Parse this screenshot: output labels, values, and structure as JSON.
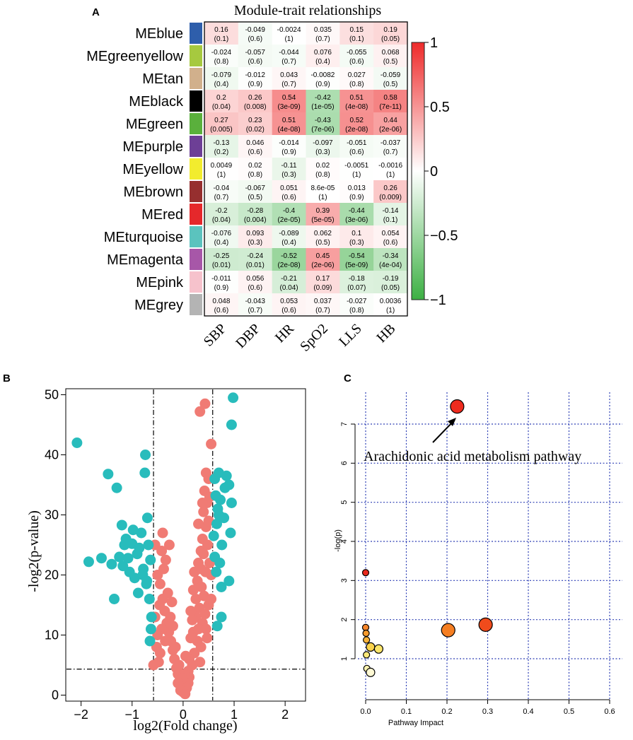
{
  "panels": {
    "a": "A",
    "b": "B",
    "c": "C"
  },
  "chart_data": [
    {
      "type": "heatmap",
      "title": "Module-trait relationships",
      "rows": [
        "MEblue",
        "MEgreenyellow",
        "MEtan",
        "MEblack",
        "MEgreen",
        "MEpurple",
        "MEyellow",
        "MEbrown",
        "MEred",
        "MEturquoise",
        "MEmagenta",
        "MEpink",
        "MEgrey"
      ],
      "row_colors": [
        "#2e5eab",
        "#a6c93f",
        "#d1b08c",
        "#000000",
        "#5ab03c",
        "#6d3f96",
        "#f2ec2e",
        "#962f2f",
        "#e5282b",
        "#5bc3be",
        "#a757a8",
        "#f6c2cc",
        "#b4b4b4"
      ],
      "columns": [
        "SBP",
        "DBP",
        "HR",
        "SpO2",
        "LLS",
        "HB"
      ],
      "values": [
        [
          0.16,
          -0.049,
          -0.0024,
          0.035,
          0.15,
          0.19
        ],
        [
          -0.024,
          -0.057,
          -0.044,
          0.076,
          -0.055,
          0.068
        ],
        [
          -0.079,
          -0.012,
          0.043,
          -0.0082,
          0.027,
          -0.059
        ],
        [
          0.2,
          0.26,
          0.54,
          -0.42,
          0.51,
          0.58
        ],
        [
          0.27,
          0.23,
          0.51,
          -0.43,
          0.52,
          0.44
        ],
        [
          -0.13,
          0.046,
          -0.014,
          -0.097,
          -0.051,
          -0.037
        ],
        [
          0.0049,
          0.02,
          -0.11,
          0.02,
          -0.0051,
          -0.0016
        ],
        [
          -0.04,
          -0.067,
          0.051,
          8.6e-05,
          0.013,
          0.26
        ],
        [
          -0.2,
          -0.28,
          -0.4,
          0.39,
          -0.44,
          -0.14
        ],
        [
          -0.076,
          0.093,
          -0.089,
          0.062,
          0.1,
          0.054
        ],
        [
          -0.25,
          -0.24,
          -0.52,
          0.45,
          -0.54,
          -0.34
        ],
        [
          -0.011,
          0.056,
          -0.21,
          0.17,
          -0.18,
          -0.19
        ],
        [
          0.048,
          -0.043,
          0.053,
          0.037,
          -0.027,
          0.0036
        ]
      ],
      "value_labels": [
        [
          "0.16",
          "-0.049",
          "-0.0024",
          "0.035",
          "0.15",
          "0.19"
        ],
        [
          "-0.024",
          "-0.057",
          "-0.044",
          "0.076",
          "-0.055",
          "0.068"
        ],
        [
          "-0.079",
          "-0.012",
          "0.043",
          "-0.0082",
          "0.027",
          "-0.059"
        ],
        [
          "0.2",
          "0.26",
          "0.54",
          "-0.42",
          "0.51",
          "0.58"
        ],
        [
          "0.27",
          "0.23",
          "0.51",
          "-0.43",
          "0.52",
          "0.44"
        ],
        [
          "-0.13",
          "0.046",
          "-0.014",
          "-0.097",
          "-0.051",
          "-0.037"
        ],
        [
          "0.0049",
          "0.02",
          "-0.11",
          "0.02",
          "-0.0051",
          "-0.0016"
        ],
        [
          "-0.04",
          "-0.067",
          "0.051",
          "8.6e-05",
          "0.013",
          "0.26"
        ],
        [
          "-0.2",
          "-0.28",
          "-0.4",
          "0.39",
          "-0.44",
          "-0.14"
        ],
        [
          "-0.076",
          "0.093",
          "-0.089",
          "0.062",
          "0.1",
          "0.054"
        ],
        [
          "-0.25",
          "-0.24",
          "-0.52",
          "0.45",
          "-0.54",
          "-0.34"
        ],
        [
          "-0.011",
          "0.056",
          "-0.21",
          "0.17",
          "-0.18",
          "-0.19"
        ],
        [
          "0.048",
          "-0.043",
          "0.053",
          "0.037",
          "-0.027",
          "0.0036"
        ]
      ],
      "p_labels": [
        [
          "(0.1)",
          "(0.6)",
          "(1)",
          "(0.7)",
          "(0.1)",
          "(0.05)"
        ],
        [
          "(0.8)",
          "(0.6)",
          "(0.7)",
          "(0.4)",
          "(0.6)",
          "(0.5)"
        ],
        [
          "(0.4)",
          "(0.9)",
          "(0.7)",
          "(0.9)",
          "(0.8)",
          "(0.5)"
        ],
        [
          "(0.04)",
          "(0.008)",
          "(3e-09)",
          "(1e-05)",
          "(4e-08)",
          "(7e-11)"
        ],
        [
          "(0.005)",
          "(0.02)",
          "(4e-08)",
          "(7e-06)",
          "(2e-08)",
          "(2e-06)"
        ],
        [
          "(0.2)",
          "(0.6)",
          "(0.9)",
          "(0.3)",
          "(0.6)",
          "(0.7)"
        ],
        [
          "(1)",
          "(0.8)",
          "(0.3)",
          "(0.8)",
          "(1)",
          "(1)"
        ],
        [
          "(0.7)",
          "(0.5)",
          "(0.6)",
          "(1)",
          "(0.9)",
          "(0.009)"
        ],
        [
          "(0.04)",
          "(0.004)",
          "(2e-05)",
          "(5e-05)",
          "(3e-06)",
          "(0.1)"
        ],
        [
          "(0.4)",
          "(0.3)",
          "(0.4)",
          "(0.5)",
          "(0.3)",
          "(0.6)"
        ],
        [
          "(0.01)",
          "(0.01)",
          "(2e-08)",
          "(2e-06)",
          "(5e-09)",
          "(4e-04)"
        ],
        [
          "(0.9)",
          "(0.6)",
          "(0.04)",
          "(0.09)",
          "(0.07)",
          "(0.05)"
        ],
        [
          "(0.6)",
          "(0.7)",
          "(0.6)",
          "(0.7)",
          "(0.8)",
          "(1)"
        ]
      ],
      "scale": {
        "min": -1,
        "max": 1,
        "low_color": "#3cb043",
        "mid_color": "#ffffff",
        "high_color": "#ee2a2a"
      },
      "colorbar_ticks": [
        1,
        0.5,
        0,
        -0.5,
        -1
      ],
      "colorbar_tick_labels": [
        "1",
        "0.5",
        "0",
        "−0.5",
        "−1"
      ]
    },
    {
      "type": "scatter",
      "xlabel": "log2(Fold change)",
      "ylabel": "-log2(p-value)",
      "xlim": [
        -2.3,
        2.4
      ],
      "ylim": [
        -1,
        51
      ],
      "xticks": [
        -2,
        -1,
        0,
        1,
        2
      ],
      "yticks": [
        0,
        10,
        20,
        30,
        40,
        50
      ],
      "vlines": [
        -0.58,
        0.58
      ],
      "hline": 4.32,
      "series": [
        {
          "name": "significant",
          "color": "#28bcbc",
          "points": [
            [
              -2.08,
              42
            ],
            [
              -1.85,
              22.2
            ],
            [
              -1.6,
              22.8
            ],
            [
              -1.47,
              36.8
            ],
            [
              -1.35,
              16
            ],
            [
              -1.3,
              34.5
            ],
            [
              -1.2,
              28.3
            ],
            [
              -1.18,
              21.5
            ],
            [
              -1.12,
              26
            ],
            [
              -1.05,
              20.5
            ],
            [
              -1,
              25.2
            ],
            [
              -0.95,
              19.5
            ],
            [
              -0.9,
              23.5
            ],
            [
              -0.88,
              17
            ],
            [
              -0.82,
              27
            ],
            [
              -0.78,
              21
            ],
            [
              -0.75,
              37
            ],
            [
              -0.74,
              40
            ],
            [
              -0.72,
              18.5
            ],
            [
              -0.7,
              29.5
            ],
            [
              -0.68,
              25
            ],
            [
              -0.66,
              16
            ],
            [
              -0.64,
              22.5
            ],
            [
              -0.63,
              11
            ],
            [
              -0.62,
              13
            ],
            [
              -1.4,
              21.8
            ],
            [
              -1.25,
              23
            ],
            [
              -1.15,
              25
            ],
            [
              -0.98,
              27.5
            ],
            [
              -0.86,
              24.5
            ],
            [
              -0.79,
              20
            ],
            [
              -0.71,
              19
            ],
            [
              -0.65,
              9
            ],
            [
              -1.08,
              22.8
            ],
            [
              0.98,
              49.5
            ],
            [
              0.95,
              45
            ],
            [
              0.62,
              36
            ],
            [
              0.64,
              33.2
            ],
            [
              0.66,
              28.5
            ],
            [
              0.68,
              31
            ],
            [
              0.7,
              30
            ],
            [
              0.73,
              32.5
            ],
            [
              0.76,
              25
            ],
            [
              0.8,
              29.5
            ],
            [
              0.85,
              36.5
            ],
            [
              0.9,
              35
            ],
            [
              0.95,
              32
            ],
            [
              0.93,
              27
            ],
            [
              0.62,
              23
            ],
            [
              0.65,
              20.5
            ],
            [
              0.75,
              18
            ],
            [
              0.9,
              19
            ],
            [
              0.75,
              13
            ],
            [
              0.67,
              11.5
            ],
            [
              0.7,
              37
            ],
            [
              0.82,
              34.5
            ],
            [
              0.6,
              26.5
            ],
            [
              0.72,
              22
            ]
          ]
        },
        {
          "name": "not-significant",
          "color": "#f07b74",
          "points": [
            [
              0.33,
              47.2
            ],
            [
              0.43,
              48.5
            ],
            [
              0.55,
              41.8
            ],
            [
              0.5,
              36
            ],
            [
              0.47,
              32
            ],
            [
              0.42,
              34
            ],
            [
              0.4,
              30.5
            ],
            [
              0.45,
              28
            ],
            [
              0.38,
              26
            ],
            [
              0.35,
              24
            ],
            [
              0.48,
              25
            ],
            [
              0.52,
              22
            ],
            [
              0.44,
              20.5
            ],
            [
              0.3,
              22
            ],
            [
              0.28,
              19
            ],
            [
              0.36,
              18
            ],
            [
              0.41,
              16.5
            ],
            [
              0.5,
              15
            ],
            [
              0.32,
              14.5
            ],
            [
              0.25,
              13
            ],
            [
              0.38,
              12
            ],
            [
              0.45,
              11
            ],
            [
              0.2,
              10.5
            ],
            [
              0.28,
              9
            ],
            [
              0.35,
              8
            ],
            [
              0.15,
              9.5
            ],
            [
              0.22,
              7
            ],
            [
              0.12,
              6
            ],
            [
              0.18,
              5
            ],
            [
              0.1,
              4
            ],
            [
              0.08,
              3
            ],
            [
              0.05,
              2
            ],
            [
              0.02,
              1
            ],
            [
              0,
              0.5
            ],
            [
              -0.03,
              1.5
            ],
            [
              -0.06,
              2.5
            ],
            [
              -0.1,
              3.5
            ],
            [
              -0.13,
              4.5
            ],
            [
              -0.17,
              6
            ],
            [
              -0.2,
              7.5
            ],
            [
              -0.24,
              9
            ],
            [
              -0.28,
              10.5
            ],
            [
              -0.32,
              12
            ],
            [
              -0.36,
              14
            ],
            [
              -0.4,
              16
            ],
            [
              -0.45,
              18.5
            ],
            [
              -0.5,
              20
            ],
            [
              -0.55,
              13
            ],
            [
              -0.52,
              8
            ],
            [
              -0.48,
              5.5
            ],
            [
              -0.42,
              11
            ],
            [
              -0.38,
              21
            ],
            [
              -0.46,
              15
            ],
            [
              -0.3,
              17
            ],
            [
              -0.25,
              13
            ],
            [
              -0.35,
              9
            ],
            [
              -0.4,
              27
            ],
            [
              -0.27,
              25
            ],
            [
              -0.2,
              11.5
            ],
            [
              -0.15,
              8
            ],
            [
              -0.08,
              5
            ],
            [
              0.05,
              6.5
            ],
            [
              0.12,
              3
            ],
            [
              0.1,
              2
            ],
            [
              0.25,
              16
            ],
            [
              0.3,
              11
            ],
            [
              0.15,
              14
            ],
            [
              0.2,
              17.5
            ],
            [
              0.4,
              23.5
            ],
            [
              0.5,
              29
            ],
            [
              0.43,
              13.5
            ],
            [
              0.47,
              9.5
            ],
            [
              0.55,
              16
            ],
            [
              0.55,
              20
            ],
            [
              0.33,
              5.5
            ],
            [
              -0.55,
              25
            ],
            [
              -0.5,
              10
            ],
            [
              -0.45,
              7
            ],
            [
              -0.58,
              5
            ],
            [
              0.02,
              3.5
            ],
            [
              -0.02,
              2.8
            ],
            [
              0.07,
              1.2
            ],
            [
              -0.05,
              0.8
            ],
            [
              0.04,
              0.2
            ],
            [
              -0.1,
              2
            ],
            [
              0.22,
              20.5
            ],
            [
              0.35,
              21
            ],
            [
              0.38,
              32
            ],
            [
              0.45,
              37
            ],
            [
              0.52,
              33
            ],
            [
              -0.34,
              22.5
            ],
            [
              -0.42,
              24
            ],
            [
              -0.22,
              15.5
            ],
            [
              0.18,
              12.5
            ],
            [
              0.3,
              28.5
            ]
          ]
        }
      ]
    },
    {
      "type": "scatter",
      "xlabel": "Pathway Impact",
      "ylabel": "-log(p)",
      "xlim": [
        -0.02,
        0.62
      ],
      "ylim": [
        0.55,
        7.65
      ],
      "xticks": [
        0.0,
        0.1,
        0.2,
        0.3,
        0.4,
        0.5,
        0.6
      ],
      "xtick_labels": [
        "0.0",
        "0.1",
        "0.2",
        "0.3",
        "0.4",
        "0.5",
        "0.6"
      ],
      "yticks": [
        1,
        2,
        3,
        4,
        5,
        6,
        7
      ],
      "points": [
        {
          "x": 0.225,
          "y": 7.45,
          "size": "large",
          "color": "#ee2b1e"
        },
        {
          "x": 0.295,
          "y": 1.87,
          "size": "large",
          "color": "#f04b1c"
        },
        {
          "x": 0.203,
          "y": 1.73,
          "size": "large",
          "color": "#f57e22"
        },
        {
          "x": 0.0,
          "y": 3.2,
          "size": "small",
          "color": "#e8281c"
        },
        {
          "x": 0.0,
          "y": 1.8,
          "size": "small",
          "color": "#f5852a"
        },
        {
          "x": 0.001,
          "y": 1.65,
          "size": "small",
          "color": "#f59a2d"
        },
        {
          "x": 0.002,
          "y": 1.48,
          "size": "small",
          "color": "#f7b23a"
        },
        {
          "x": 0.012,
          "y": 1.3,
          "size": "medium",
          "color": "#f9d24c"
        },
        {
          "x": 0.032,
          "y": 1.25,
          "size": "medium",
          "color": "#fbe56a"
        },
        {
          "x": 0.002,
          "y": 1.1,
          "size": "small",
          "color": "#fbe879"
        },
        {
          "x": 0.003,
          "y": 0.75,
          "size": "small",
          "color": "#fdf3b0"
        },
        {
          "x": 0.012,
          "y": 0.65,
          "size": "medium",
          "color": "#fef9d4"
        }
      ],
      "annotation": "Arachidonic acid metabolism pathway"
    }
  ]
}
